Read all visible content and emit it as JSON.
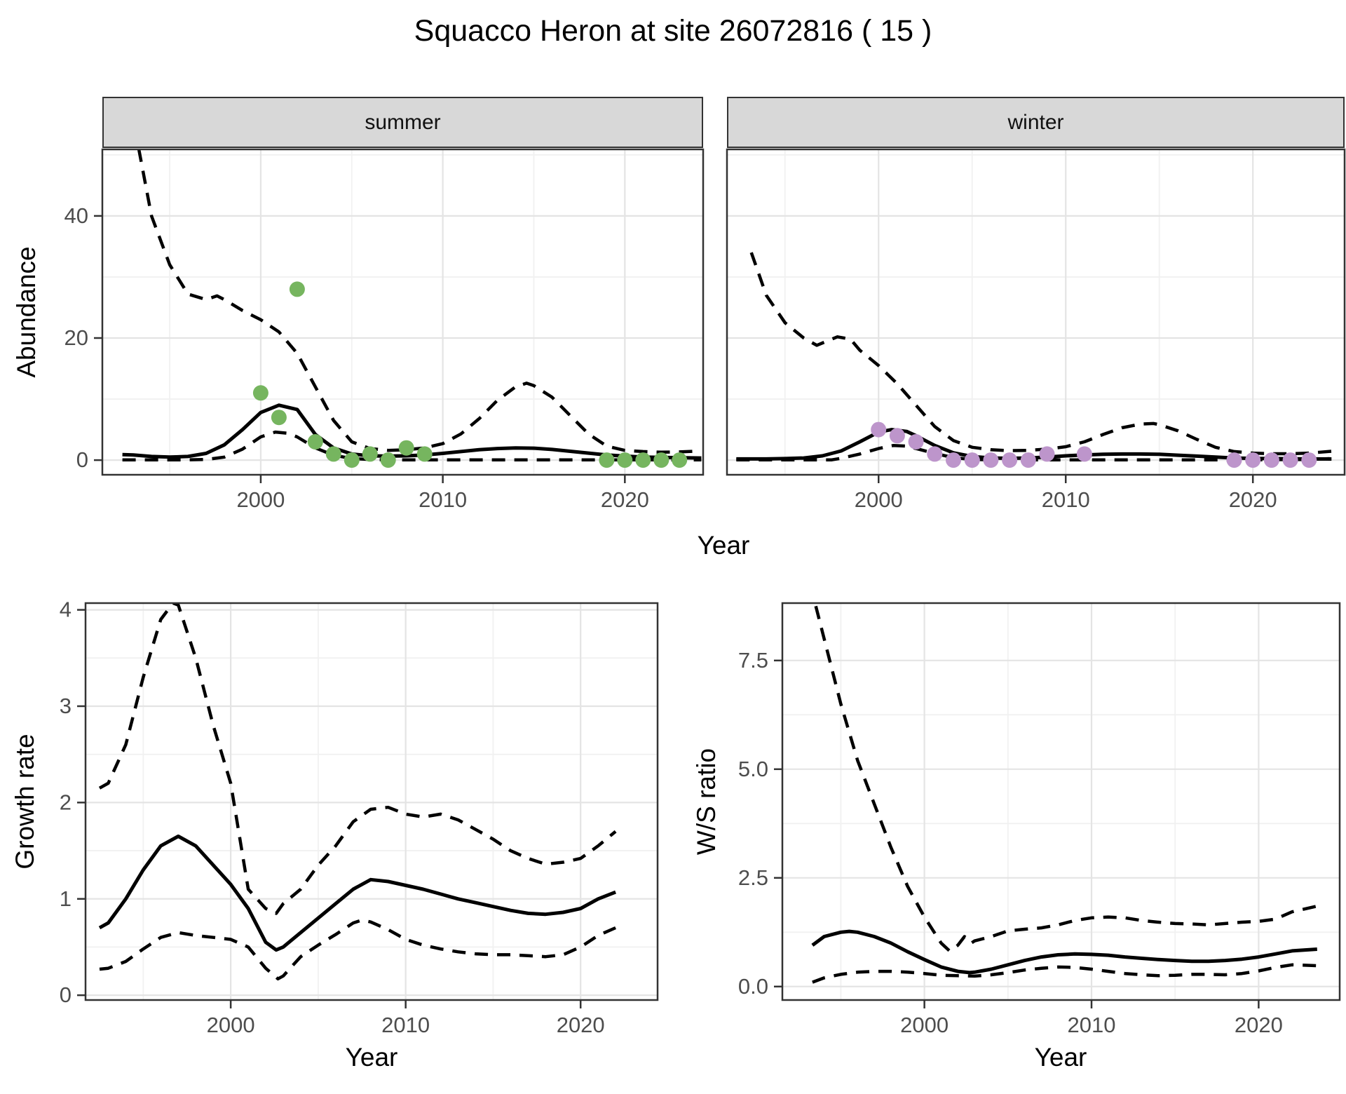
{
  "title": "Squacco Heron at site 26072816 ( 15 )",
  "facets": {
    "summer": "summer",
    "winter": "winter"
  },
  "axis_titles": {
    "abundance": "Abundance",
    "year": "Year",
    "growth_rate": "Growth rate",
    "ws_ratio": "W/S ratio"
  },
  "colors": {
    "summer_point": "#76b55f",
    "winter_point": "#bd95cb",
    "line": "#000000",
    "strip_bg": "#d8d8d8",
    "panel_border": "#333333",
    "grid_major": "#e4e4e4",
    "grid_minor": "#f1f1f1",
    "tick_text": "#4d4d4d",
    "text": "#000000"
  },
  "chart_data": [
    {
      "id": "abundance-summer",
      "type": "line",
      "facet_label": "summer",
      "xlabel": "Year",
      "ylabel": "Abundance",
      "xlim": [
        1991.3,
        2024.3
      ],
      "ylim": [
        -2.4,
        50.9
      ],
      "x_ticks": {
        "values": [
          2000,
          2010,
          2020
        ],
        "labels": [
          "2000",
          "2010",
          "2020"
        ]
      },
      "x_minor": [
        1995,
        2005,
        2015
      ],
      "y_ticks": {
        "values": [
          0,
          20,
          40
        ],
        "labels": [
          "0",
          "20",
          "40"
        ]
      },
      "y_minor": [
        10,
        30,
        50
      ],
      "show_y_tick_labels": true,
      "series": [
        {
          "name": "fit",
          "style": "solid",
          "x": [
            1992.4,
            1993,
            1994,
            1995,
            1996,
            1997,
            1998,
            1999,
            2000,
            2001,
            2002,
            2003,
            2004,
            2005,
            2006,
            2007,
            2008,
            2009,
            2010,
            2011,
            2012,
            2013,
            2014,
            2015,
            2016,
            2017,
            2018,
            2019,
            2020,
            2021,
            2022,
            2023,
            2024.2
          ],
          "y": [
            0.9,
            0.85,
            0.6,
            0.5,
            0.6,
            1.1,
            2.5,
            5.0,
            7.8,
            9.0,
            8.3,
            4.2,
            2.0,
            1.0,
            0.7,
            0.65,
            0.7,
            0.85,
            1.1,
            1.4,
            1.7,
            1.9,
            2.0,
            1.95,
            1.75,
            1.45,
            1.15,
            0.85,
            0.65,
            0.5,
            0.45,
            0.4,
            0.35
          ]
        },
        {
          "name": "upper_ci",
          "style": "dashed",
          "x": [
            1993.3,
            1994,
            1995,
            1996,
            1997,
            1997.6,
            1998,
            1999,
            2000,
            2001,
            2002,
            2003,
            2004,
            2005,
            2006,
            2007,
            2008,
            2009,
            2010,
            2011,
            2012,
            2013,
            2014,
            2014.6,
            2015,
            2016,
            2017,
            2018,
            2019,
            2020,
            2021,
            2022,
            2023,
            2024.2
          ],
          "y": [
            51,
            40,
            32,
            27.2,
            26.3,
            26.9,
            26.3,
            24.5,
            23,
            21,
            17.5,
            12,
            6.5,
            3,
            1.9,
            1.6,
            1.7,
            2.0,
            2.7,
            4.3,
            6.8,
            9.8,
            12,
            12.6,
            12.2,
            10.3,
            7.3,
            4.3,
            2.3,
            1.6,
            1.4,
            1.3,
            1.35,
            1.5
          ]
        },
        {
          "name": "lower_ci",
          "style": "dashed",
          "x": [
            1992.4,
            1994,
            1996,
            1997,
            1998,
            1999,
            2000,
            2000.8,
            2001.5,
            2002,
            2003,
            2004,
            2005,
            2006,
            2007,
            2010,
            2015,
            2020,
            2024.2
          ],
          "y": [
            0.05,
            0.05,
            0.05,
            0.1,
            0.5,
            1.8,
            3.8,
            4.6,
            4.4,
            3.8,
            2.0,
            0.8,
            0.25,
            0.1,
            0.05,
            0.05,
            0.05,
            0.05,
            0.05
          ]
        }
      ],
      "points": {
        "name": "observed_abundance",
        "color_key": "summer_point",
        "x": [
          2000,
          2001,
          2002,
          2003,
          2004,
          2005,
          2006,
          2007,
          2008,
          2009,
          2019,
          2020,
          2021,
          2022,
          2023
        ],
        "y": [
          11,
          7,
          28,
          3,
          1,
          0,
          1,
          0,
          2,
          1,
          0,
          0,
          0,
          0,
          0
        ]
      }
    },
    {
      "id": "abundance-winter",
      "type": "line",
      "facet_label": "winter",
      "xlabel": "Year",
      "ylabel": "Abundance",
      "xlim": [
        1991.9,
        2024.9
      ],
      "ylim": [
        -2.4,
        50.9
      ],
      "x_ticks": {
        "values": [
          2000,
          2010,
          2020
        ],
        "labels": [
          "2000",
          "2010",
          "2020"
        ]
      },
      "x_minor": [
        1995,
        2005,
        2015
      ],
      "y_ticks": {
        "values": [
          0,
          20,
          40
        ],
        "labels": [
          "0",
          "20",
          "40"
        ]
      },
      "y_minor": [
        10,
        30,
        50
      ],
      "show_y_tick_labels": false,
      "series": [
        {
          "name": "fit",
          "style": "solid",
          "x": [
            1992.4,
            1993,
            1994,
            1995,
            1996,
            1997,
            1998,
            1999,
            2000,
            2000.7,
            2001.5,
            2002,
            2003,
            2004,
            2005,
            2006,
            2007,
            2008,
            2009,
            2010,
            2011,
            2012,
            2013,
            2014,
            2015,
            2016,
            2017,
            2018,
            2019,
            2020,
            2021,
            2022,
            2023,
            2024.2
          ],
          "y": [
            0.2,
            0.2,
            0.2,
            0.25,
            0.35,
            0.7,
            1.5,
            3.0,
            4.6,
            5.0,
            4.7,
            4.0,
            2.4,
            1.2,
            0.6,
            0.35,
            0.3,
            0.35,
            0.5,
            0.7,
            0.85,
            0.95,
            1.0,
            1.0,
            0.95,
            0.8,
            0.65,
            0.5,
            0.35,
            0.28,
            0.25,
            0.22,
            0.2,
            0.18
          ]
        },
        {
          "name": "upper_ci",
          "style": "dashed",
          "x": [
            1993.2,
            1994,
            1995,
            1996,
            1996.7,
            1997.8,
            1998.5,
            1999,
            2000,
            2001,
            2002,
            2003,
            2004,
            2005,
            2006,
            2007,
            2008,
            2009,
            2010,
            2011,
            2012,
            2013,
            2014,
            2014.7,
            2015,
            2016,
            2017,
            2018,
            2019,
            2020,
            2021,
            2022,
            2023,
            2024.2
          ],
          "y": [
            34,
            27,
            22.5,
            20,
            18.8,
            20.2,
            19.8,
            18,
            15.5,
            12.5,
            9,
            5.5,
            3.2,
            2.1,
            1.7,
            1.55,
            1.6,
            1.8,
            2.2,
            3.0,
            4.2,
            5.3,
            5.9,
            6.0,
            5.8,
            4.8,
            3.4,
            2.1,
            1.4,
            1.15,
            1.05,
            1.05,
            1.15,
            1.45
          ]
        },
        {
          "name": "lower_ci",
          "style": "dashed",
          "x": [
            1992.4,
            1994,
            1996,
            1997.5,
            1998,
            1999,
            2000,
            2000.8,
            2001.5,
            2002,
            2003,
            2004,
            2005,
            2006,
            2010,
            2015,
            2020,
            2023,
            2024.2
          ],
          "y": [
            0.05,
            0.05,
            0.05,
            0.05,
            0.3,
            1.0,
            1.9,
            2.4,
            2.3,
            1.9,
            1.1,
            0.4,
            0.1,
            0.05,
            0.05,
            0.05,
            0.05,
            0.1,
            0.25
          ]
        }
      ],
      "points": {
        "name": "observed_abundance",
        "color_key": "winter_point",
        "x": [
          2000,
          2001,
          2002,
          2003,
          2004,
          2005,
          2006,
          2007,
          2008,
          2009,
          2011,
          2019,
          2020,
          2021,
          2022,
          2023
        ],
        "y": [
          5,
          4,
          3,
          1,
          0,
          0,
          0,
          0,
          0,
          1,
          1,
          0,
          0,
          0,
          0,
          0
        ]
      }
    },
    {
      "id": "growth-rate",
      "type": "line",
      "facet_label": "",
      "xlabel": "Year",
      "ylabel": "Growth rate",
      "xlim": [
        1991.7,
        2024.4
      ],
      "ylim": [
        -0.05,
        4.07
      ],
      "x_ticks": {
        "values": [
          2000,
          2010,
          2020
        ],
        "labels": [
          "2000",
          "2010",
          "2020"
        ]
      },
      "x_minor": [
        1995,
        2005,
        2015
      ],
      "y_ticks": {
        "values": [
          0,
          1,
          2,
          3,
          4
        ],
        "labels": [
          "0",
          "1",
          "2",
          "3",
          "4"
        ]
      },
      "y_minor": [
        0.5,
        1.5,
        2.5,
        3.5
      ],
      "show_y_tick_labels": true,
      "series": [
        {
          "name": "fit",
          "style": "solid",
          "x": [
            1992.5,
            1993,
            1994,
            1995,
            1996,
            1997,
            1998,
            1999,
            2000,
            2001,
            2002,
            2002.6,
            2003,
            2004,
            2005,
            2006,
            2007,
            2008,
            2009,
            2010,
            2011,
            2012,
            2013,
            2014,
            2015,
            2016,
            2017,
            2018,
            2019,
            2020,
            2021,
            2022
          ],
          "y": [
            0.7,
            0.75,
            1.0,
            1.3,
            1.55,
            1.65,
            1.55,
            1.35,
            1.15,
            0.9,
            0.55,
            0.47,
            0.5,
            0.65,
            0.8,
            0.95,
            1.1,
            1.2,
            1.18,
            1.14,
            1.1,
            1.05,
            1.0,
            0.96,
            0.92,
            0.88,
            0.85,
            0.84,
            0.86,
            0.9,
            1.0,
            1.07
          ]
        },
        {
          "name": "upper_ci",
          "style": "dashed",
          "x": [
            1992.5,
            1993,
            1994,
            1995,
            1996,
            1996.7,
            1997,
            1998,
            1999,
            2000,
            2001,
            2002,
            2002.6,
            2003,
            2004,
            2005,
            2006,
            2007,
            2008,
            2009,
            2010,
            2011,
            2012,
            2013,
            2014,
            2015,
            2016,
            2017,
            2018,
            2019,
            2020,
            2021,
            2022
          ],
          "y": [
            2.15,
            2.2,
            2.6,
            3.3,
            3.9,
            4.07,
            4.05,
            3.5,
            2.8,
            2.2,
            1.1,
            0.9,
            0.85,
            0.95,
            1.1,
            1.35,
            1.55,
            1.8,
            1.93,
            1.95,
            1.88,
            1.85,
            1.88,
            1.82,
            1.72,
            1.62,
            1.5,
            1.42,
            1.36,
            1.38,
            1.42,
            1.55,
            1.7
          ]
        },
        {
          "name": "lower_ci",
          "style": "dashed",
          "x": [
            1992.5,
            1993,
            1994,
            1995,
            1996,
            1997,
            1998,
            1999,
            2000,
            2001,
            2002,
            2002.7,
            2003,
            2004,
            2005,
            2006,
            2007,
            2007.5,
            2008,
            2009,
            2010,
            2011,
            2012,
            2013,
            2014,
            2015,
            2016,
            2017,
            2018,
            2019,
            2020,
            2021,
            2022
          ],
          "y": [
            0.27,
            0.28,
            0.35,
            0.48,
            0.6,
            0.65,
            0.62,
            0.6,
            0.58,
            0.5,
            0.28,
            0.17,
            0.2,
            0.4,
            0.52,
            0.63,
            0.75,
            0.78,
            0.76,
            0.68,
            0.58,
            0.52,
            0.48,
            0.45,
            0.43,
            0.42,
            0.42,
            0.41,
            0.4,
            0.42,
            0.5,
            0.62,
            0.7
          ]
        }
      ],
      "points": null
    },
    {
      "id": "ws-ratio",
      "type": "line",
      "facet_label": "",
      "xlabel": "Year",
      "ylabel": "W/S ratio",
      "xlim": [
        1991.5,
        2024.85
      ],
      "ylim": [
        -0.31,
        8.82
      ],
      "x_ticks": {
        "values": [
          2000,
          2010,
          2020
        ],
        "labels": [
          "2000",
          "2010",
          "2020"
        ]
      },
      "x_minor": [
        1995,
        2005,
        2015
      ],
      "y_ticks": {
        "values": [
          0,
          2.5,
          5,
          7.5
        ],
        "labels": [
          "0.0",
          "2.5",
          "5.0",
          "7.5"
        ]
      },
      "y_minor": [
        1.25,
        3.75,
        6.25
      ],
      "show_y_tick_labels": true,
      "series": [
        {
          "name": "fit",
          "style": "solid",
          "x": [
            1993.3,
            1994,
            1995,
            1995.5,
            1996,
            1997,
            1998,
            1999,
            2000,
            2001,
            2002,
            2002.7,
            2003,
            2004,
            2005,
            2006,
            2007,
            2008,
            2009,
            2010,
            2011,
            2012,
            2013,
            2014,
            2015,
            2016,
            2017,
            2018,
            2019,
            2020,
            2021,
            2022,
            2023.5
          ],
          "y": [
            0.95,
            1.15,
            1.25,
            1.27,
            1.25,
            1.15,
            1.0,
            0.8,
            0.62,
            0.45,
            0.35,
            0.32,
            0.33,
            0.4,
            0.5,
            0.6,
            0.68,
            0.73,
            0.75,
            0.74,
            0.72,
            0.68,
            0.65,
            0.62,
            0.6,
            0.58,
            0.58,
            0.6,
            0.63,
            0.68,
            0.75,
            0.82,
            0.86
          ]
        },
        {
          "name": "upper_ci",
          "style": "dashed",
          "x": [
            1993.5,
            1994,
            1995,
            1996,
            1997,
            1998,
            1999,
            2000,
            2001,
            2001.5,
            2002,
            2002.4,
            2002.8,
            2003,
            2004,
            2005,
            2006,
            2007,
            2008,
            2009,
            2010,
            2011,
            2012,
            2013,
            2014,
            2015,
            2016,
            2017,
            2018,
            2019,
            2020,
            2021,
            2022,
            2023.5
          ],
          "y": [
            8.75,
            8.0,
            6.5,
            5.2,
            4.2,
            3.2,
            2.3,
            1.6,
            1.0,
            0.82,
            0.95,
            1.15,
            1.0,
            1.05,
            1.15,
            1.28,
            1.32,
            1.35,
            1.42,
            1.52,
            1.58,
            1.6,
            1.58,
            1.52,
            1.48,
            1.45,
            1.44,
            1.42,
            1.45,
            1.48,
            1.5,
            1.55,
            1.72,
            1.85
          ]
        },
        {
          "name": "lower_ci",
          "style": "dashed",
          "x": [
            1993.3,
            1994,
            1995,
            1996,
            1997,
            1998,
            1999,
            2000,
            2001,
            2002,
            2003,
            2004,
            2005,
            2006,
            2007,
            2008,
            2009,
            2010,
            2011,
            2012,
            2013,
            2014,
            2015,
            2016,
            2017,
            2018,
            2019,
            2020,
            2021,
            2022,
            2023.5
          ],
          "y": [
            0.1,
            0.2,
            0.28,
            0.33,
            0.35,
            0.35,
            0.33,
            0.3,
            0.26,
            0.25,
            0.24,
            0.27,
            0.32,
            0.38,
            0.42,
            0.45,
            0.44,
            0.4,
            0.35,
            0.3,
            0.27,
            0.25,
            0.26,
            0.28,
            0.28,
            0.27,
            0.3,
            0.36,
            0.44,
            0.5,
            0.48
          ]
        }
      ],
      "points": null
    }
  ]
}
